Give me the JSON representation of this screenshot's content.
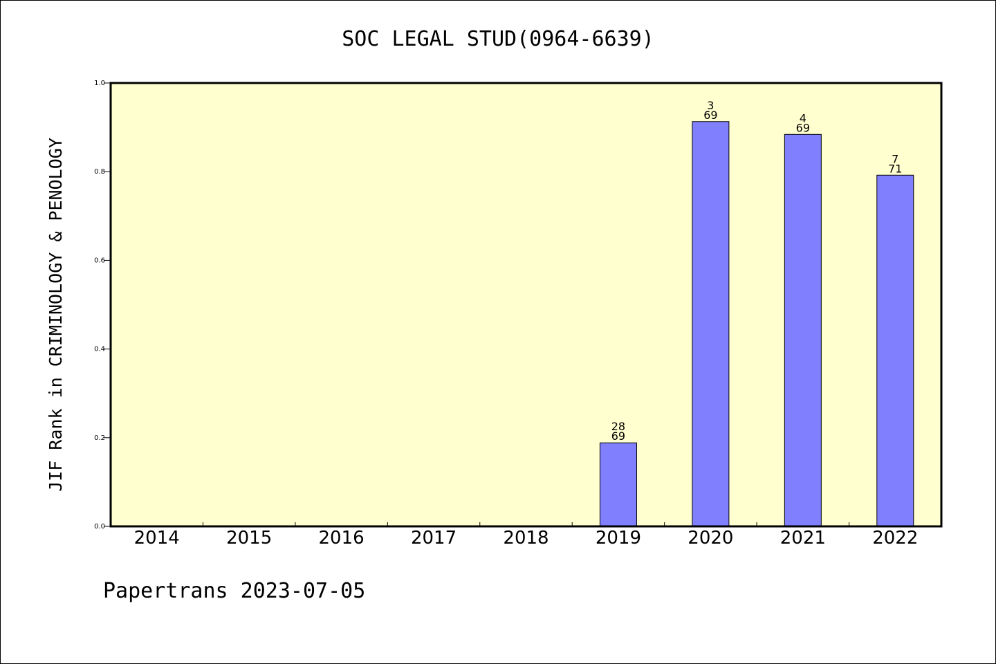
{
  "chart_data": {
    "type": "bar",
    "title": "SOC LEGAL STUD(0964-6639)",
    "ylabel": "JIF Rank in CRIMINOLOGY & PENOLOGY",
    "xlabel": "",
    "ylim": [
      0.0,
      1.0
    ],
    "yticks": [
      "0.0",
      "0.2",
      "0.4",
      "0.6",
      "0.8",
      "1.0"
    ],
    "categories": [
      "2014",
      "2015",
      "2016",
      "2017",
      "2018",
      "2019",
      "2020",
      "2021",
      "2022"
    ],
    "values": [
      null,
      null,
      null,
      null,
      null,
      0.1884,
      0.913,
      0.8841,
      0.7921
    ],
    "bar_labels": [
      null,
      null,
      null,
      null,
      null,
      {
        "rank": "28",
        "total": "69"
      },
      {
        "rank": "3",
        "total": "69"
      },
      {
        "rank": "4",
        "total": "69"
      },
      {
        "rank": "7",
        "total": "71"
      }
    ],
    "grid": false,
    "legend": "none",
    "colors": {
      "plot_background": "#ffffd0",
      "bar_fill": "#8080ff",
      "bar_stroke": "#000000",
      "axis": "#000000"
    }
  },
  "footer": {
    "text": "Papertrans 2023-07-05"
  }
}
